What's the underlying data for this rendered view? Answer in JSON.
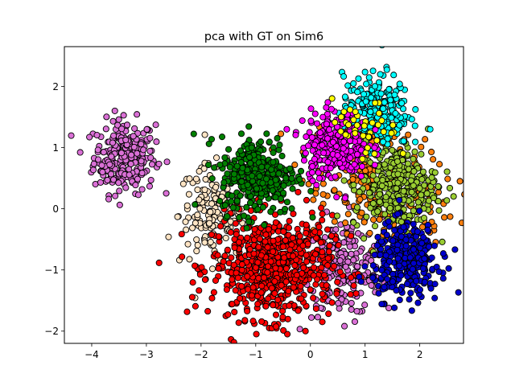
{
  "chart_data": {
    "type": "scatter",
    "title": "pca with GT on Sim6",
    "xlabel": "",
    "ylabel": "",
    "xlim": [
      -4.5,
      2.8
    ],
    "ylim": [
      -2.2,
      2.65
    ],
    "xticks": [
      -4,
      -3,
      -2,
      -1,
      0,
      1,
      2
    ],
    "yticks": [
      -2,
      -1,
      0,
      1,
      2
    ],
    "xtick_labels": [
      "−4",
      "−3",
      "−2",
      "−1",
      "0",
      "1",
      "2"
    ],
    "ytick_labels": [
      "−2",
      "−1",
      "0",
      "1",
      "2"
    ],
    "grid": false,
    "marker_edge_color": "#000000",
    "series": [
      {
        "color": "#da70d6",
        "center": [
          -3.4,
          0.85
        ],
        "spread": [
          0.28,
          0.3
        ],
        "count": 260
      },
      {
        "color": "#ffe4c4",
        "center": [
          -1.8,
          -0.1
        ],
        "spread": [
          0.3,
          0.4
        ],
        "count": 170
      },
      {
        "color": "#da70d6",
        "center": [
          0.6,
          -0.95
        ],
        "spread": [
          0.35,
          0.4
        ],
        "count": 220
      },
      {
        "color": "#ff7f0e",
        "center": [
          0.9,
          0.9
        ],
        "spread": [
          0.55,
          0.3
        ],
        "count": 110
      },
      {
        "color": "#ff7f0e",
        "center": [
          1.4,
          0.1
        ],
        "spread": [
          0.6,
          0.35
        ],
        "count": 160
      },
      {
        "color": "#ff0000",
        "center": [
          -0.7,
          -0.95
        ],
        "spread": [
          0.55,
          0.42
        ],
        "count": 650
      },
      {
        "color": "#008000",
        "center": [
          -0.95,
          0.55
        ],
        "spread": [
          0.35,
          0.32
        ],
        "count": 320
      },
      {
        "color": "#9acd32",
        "center": [
          1.55,
          0.35
        ],
        "spread": [
          0.38,
          0.35
        ],
        "count": 300
      },
      {
        "color": "#00ffff",
        "center": [
          1.2,
          1.6
        ],
        "spread": [
          0.3,
          0.3
        ],
        "count": 250
      },
      {
        "color": "#ff00ff",
        "center": [
          0.45,
          1.05
        ],
        "spread": [
          0.3,
          0.28
        ],
        "count": 250
      },
      {
        "color": "#ffff00",
        "center": [
          1.0,
          1.25
        ],
        "spread": [
          0.3,
          0.25
        ],
        "count": 40
      },
      {
        "color": "#0000cd",
        "center": [
          1.75,
          -0.85
        ],
        "spread": [
          0.3,
          0.3
        ],
        "count": 330
      }
    ]
  }
}
